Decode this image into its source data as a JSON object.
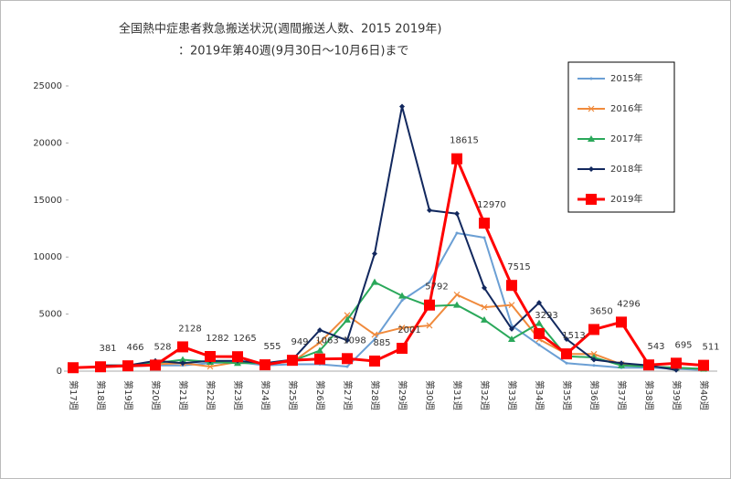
{
  "chart_data": {
    "type": "line",
    "title": "全国熱中症患者救急搬送状況(週間搬送人数、2015 2019年)",
    "subtitle": "：2019年第40週(9月30日～10月6日)まで",
    "categories": [
      "第17週",
      "第18週",
      "第19週",
      "第20週",
      "第21週",
      "第22週",
      "第23週",
      "第24週",
      "第25週",
      "第26週",
      "第27週",
      "第28週",
      "第29週",
      "第30週",
      "第31週",
      "第32週",
      "第33週",
      "第34週",
      "第35週",
      "第36週",
      "第37週",
      "第38週",
      "第39週",
      "第40週"
    ],
    "ylim": [
      0,
      25000
    ],
    "yticks": [
      0,
      5000,
      10000,
      15000,
      20000,
      25000
    ],
    "series": [
      {
        "name": "2015年",
        "color": "#6b9fd4",
        "marker": "none",
        "values": [
          null,
          400,
          400,
          500,
          500,
          700,
          800,
          500,
          600,
          600,
          400,
          2800,
          6200,
          7800,
          12100,
          11700,
          4000,
          2300,
          700,
          500,
          300,
          300,
          200,
          100
        ]
      },
      {
        "name": "2016年",
        "color": "#f08a3c",
        "marker": "x",
        "values": [
          300,
          400,
          400,
          600,
          700,
          400,
          800,
          700,
          800,
          2500,
          4900,
          3200,
          3800,
          4000,
          6700,
          5600,
          5800,
          2800,
          1500,
          1500,
          600,
          400,
          300,
          200
        ]
      },
      {
        "name": "2017年",
        "color": "#2aa85a",
        "marker": "triangle",
        "values": [
          null,
          500,
          500,
          700,
          1000,
          800,
          700,
          700,
          900,
          1800,
          4500,
          7800,
          6600,
          5700,
          5800,
          4500,
          2800,
          4200,
          1300,
          1200,
          500,
          400,
          300,
          200
        ]
      },
      {
        "name": "2018年",
        "color": "#12285e",
        "marker": "diamond",
        "values": [
          null,
          500,
          500,
          900,
          700,
          900,
          900,
          700,
          1000,
          3600,
          2700,
          10300,
          23200,
          14100,
          13800,
          7300,
          3700,
          6000,
          2800,
          1000,
          700,
          500,
          100,
          null
        ]
      },
      {
        "name": "2019年",
        "color": "#ff0000",
        "marker": "square",
        "values": [
          300,
          381,
          466,
          528,
          2128,
          1282,
          1265,
          555,
          949,
          1063,
          1098,
          885,
          2001,
          5792,
          18615,
          12970,
          7515,
          3293,
          1513,
          3650,
          4296,
          543,
          695,
          511
        ]
      }
    ]
  }
}
